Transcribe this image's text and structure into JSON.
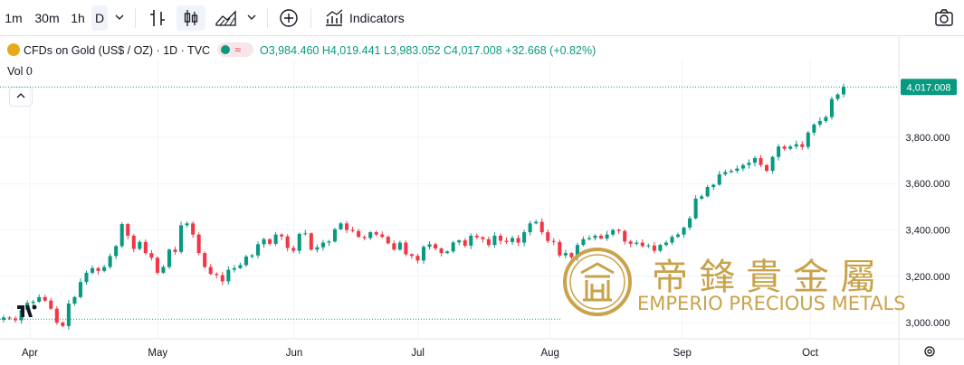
{
  "toolbar": {
    "intervals": [
      "1m",
      "30m",
      "1h",
      "D"
    ],
    "selected_interval": "D",
    "indicators_label": "Indicators"
  },
  "legend": {
    "symbol": "CFDs on Gold (US$ / OZ) · 1D · TVC",
    "open": "O3,984.460",
    "high": "H4,019.441",
    "low": "L3,983.052",
    "close": "C4,017.008",
    "change": "+32.668 (+0.82%)",
    "vol_label": "Vol 0"
  },
  "watermark": {
    "chinese": "帝鋒貴金屬",
    "english": "EMPERIO PRECIOUS METALS"
  },
  "colors": {
    "up": "#089981",
    "down": "#f23645",
    "gold": "#c9a24a",
    "price_tag": "#089981"
  },
  "chart_data": {
    "type": "candlestick",
    "title": "CFDs on Gold (US$ / OZ)",
    "last_price_label": "4,017.008",
    "y_ticks": [
      "3,800.000",
      "3,600.000",
      "3,400.000",
      "3,200.000",
      "3,000.000"
    ],
    "y_tick_values": [
      3800,
      3600,
      3400,
      3200,
      3000
    ],
    "ylim": [
      2930,
      4135
    ],
    "x_labels": [
      "Apr",
      "May",
      "Jun",
      "Jul",
      "Aug",
      "Sep",
      "Oct"
    ],
    "x_label_dates": [
      "2025-04-01",
      "2025-05-01",
      "2025-06-02",
      "2025-07-01",
      "2025-08-01",
      "2025-09-01",
      "2025-10-01"
    ],
    "reference_line": 3015,
    "close_series": [
      3022,
      3018,
      3010,
      3055,
      3085,
      3090,
      3110,
      3095,
      3060,
      3000,
      2985,
      3082,
      3110,
      3175,
      3215,
      3235,
      3223,
      3240,
      3287,
      3330,
      3425,
      3375,
      3318,
      3348,
      3300,
      3280,
      3215,
      3240,
      3315,
      3305,
      3420,
      3428,
      3380,
      3300,
      3240,
      3210,
      3205,
      3178,
      3228,
      3235,
      3248,
      3285,
      3290,
      3338,
      3360,
      3340,
      3380,
      3372,
      3322,
      3310,
      3383,
      3385,
      3315,
      3325,
      3345,
      3350,
      3403,
      3428,
      3400,
      3395,
      3370,
      3365,
      3390,
      3380,
      3370,
      3342,
      3315,
      3345,
      3295,
      3288,
      3268,
      3327,
      3338,
      3320,
      3300,
      3307,
      3346,
      3355,
      3332,
      3375,
      3368,
      3360,
      3335,
      3375,
      3353,
      3348,
      3365,
      3345,
      3390,
      3428,
      3435,
      3390,
      3352,
      3348,
      3290,
      3300,
      3282,
      3335,
      3360,
      3365,
      3375,
      3363,
      3380,
      3400,
      3395,
      3350,
      3340,
      3345,
      3330,
      3333,
      3310,
      3335,
      3345,
      3370,
      3380,
      3410,
      3450,
      3535,
      3545,
      3585,
      3595,
      3640,
      3650,
      3655,
      3665,
      3680,
      3690,
      3710,
      3680,
      3655,
      3715,
      3760,
      3750,
      3760,
      3770,
      3758,
      3820,
      3855,
      3870,
      3887,
      3965,
      3985,
      4017
    ],
    "x_start": "2025-03-25",
    "x_end": "2025-10-08"
  }
}
